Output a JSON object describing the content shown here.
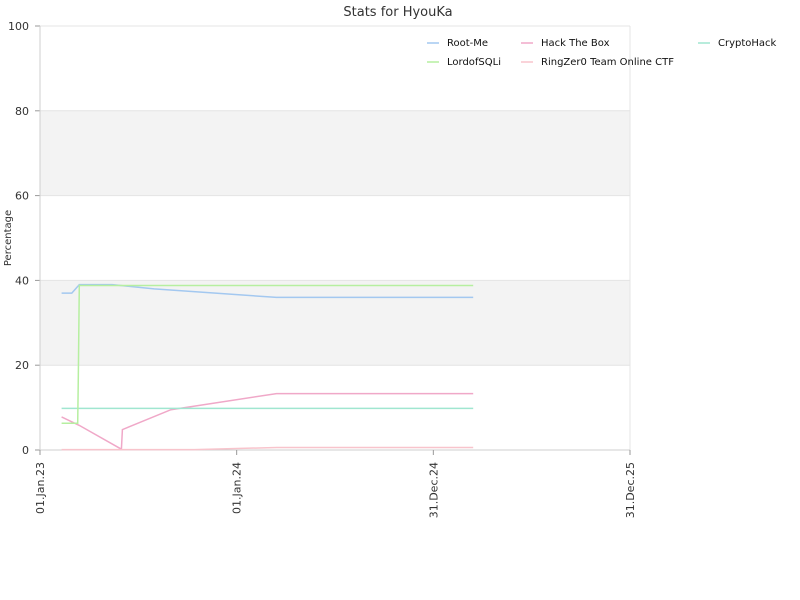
{
  "chart_data": {
    "type": "line",
    "title": "Stats for HyouKa",
    "xlabel": "",
    "ylabel": "Percentage",
    "ylim": [
      0,
      100
    ],
    "xlim": [
      "2023-01-01",
      "2025-12-31"
    ],
    "yticks": [
      0,
      20,
      40,
      60,
      80,
      100
    ],
    "xticks": [
      {
        "date": "2023-01-01",
        "label": "01.Jan.23"
      },
      {
        "date": "2024-01-01",
        "label": "01.Jan.24"
      },
      {
        "date": "2024-12-31",
        "label": "31.Dec.24"
      },
      {
        "date": "2025-12-31",
        "label": "31.Dec.25"
      }
    ],
    "bands": [
      [
        20,
        40
      ],
      [
        60,
        80
      ]
    ],
    "band_color": "#f3f3f3",
    "legend_position": "top-right",
    "series": [
      {
        "name": "Root-Me",
        "color": "#a3c8f0",
        "points": [
          [
            "2023-02-10",
            37
          ],
          [
            "2023-03-01",
            37
          ],
          [
            "2023-03-15",
            39
          ],
          [
            "2023-05-15",
            39
          ],
          [
            "2023-08-01",
            38
          ],
          [
            "2024-03-15",
            36
          ],
          [
            "2025-03-15",
            36
          ]
        ]
      },
      {
        "name": "Hack The Box",
        "color": "#f0a8c8",
        "points": [
          [
            "2023-02-10",
            7.8
          ],
          [
            "2023-03-15",
            5.8
          ],
          [
            "2023-06-01",
            0.2
          ],
          [
            "2023-06-03",
            4.8
          ],
          [
            "2023-09-01",
            9.5
          ],
          [
            "2024-03-15",
            13.3
          ],
          [
            "2025-03-15",
            13.3
          ]
        ]
      },
      {
        "name": "CryptoHack",
        "color": "#a0e6d0",
        "points": [
          [
            "2023-02-10",
            9.8
          ],
          [
            "2025-03-15",
            9.8
          ]
        ]
      },
      {
        "name": "LordofSQLi",
        "color": "#b6efa0",
        "points": [
          [
            "2023-02-10",
            6.3
          ],
          [
            "2023-03-12",
            6.3
          ],
          [
            "2023-03-13",
            17
          ],
          [
            "2023-03-15",
            38.8
          ],
          [
            "2025-03-15",
            38.8
          ]
        ]
      },
      {
        "name": "RingZer0 Team Online CTF",
        "color": "#f8c4cc",
        "points": [
          [
            "2023-02-10",
            0.1
          ],
          [
            "2023-10-15",
            0.1
          ],
          [
            "2024-03-15",
            0.6
          ],
          [
            "2025-03-15",
            0.6
          ]
        ]
      }
    ]
  }
}
